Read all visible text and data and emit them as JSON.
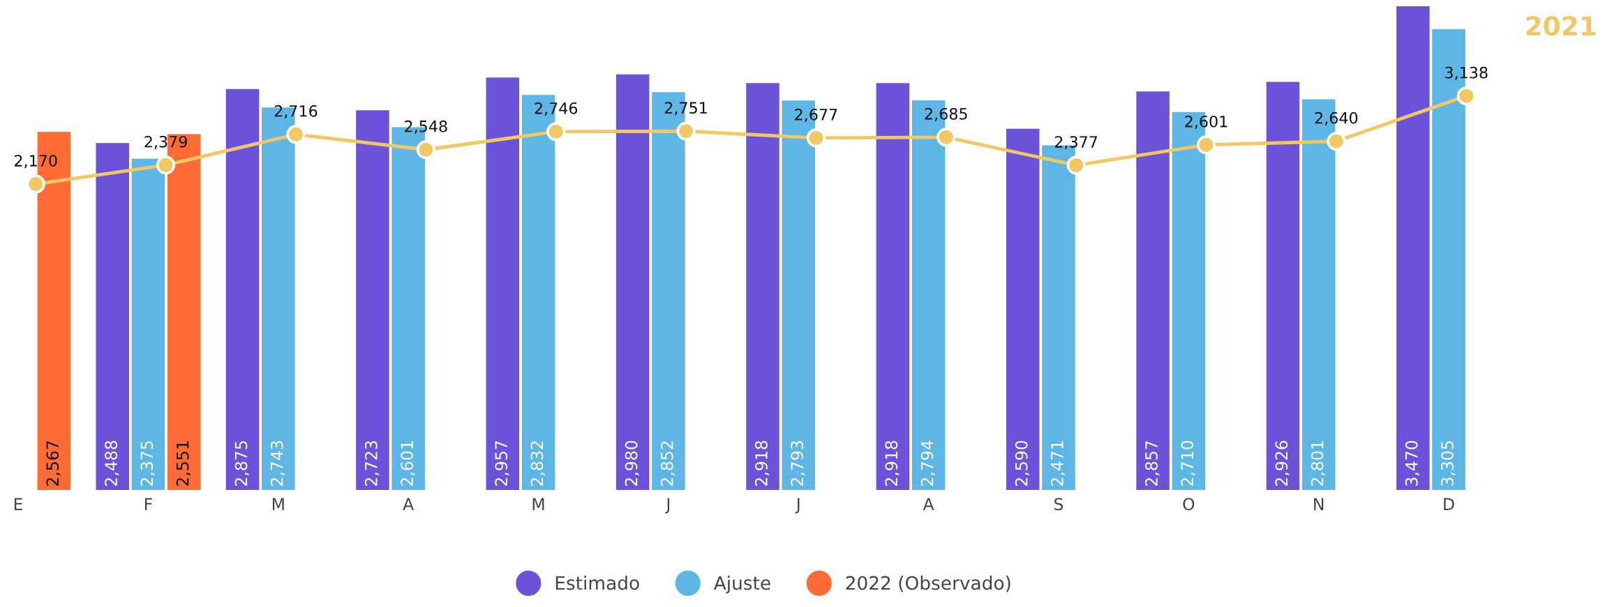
{
  "chart_data": {
    "type": "bar",
    "categories": [
      "E",
      "F",
      "M",
      "A",
      "M",
      "J",
      "J",
      "A",
      "S",
      "O",
      "N",
      "D"
    ],
    "series": [
      {
        "name": "Estimado",
        "color": "#6c52d9",
        "values": [
          null,
          2488,
          2875,
          2723,
          2957,
          2980,
          2918,
          2918,
          2590,
          2857,
          2926,
          3470
        ],
        "value_labels": [
          null,
          "2,488",
          "2,875",
          "2,723",
          "2,957",
          "2,980",
          "2,918",
          "2,918",
          "2,590",
          "2,857",
          "2,926",
          "3,470"
        ]
      },
      {
        "name": "Ajuste",
        "color": "#5db6e4",
        "values": [
          null,
          2375,
          2743,
          2601,
          2832,
          2852,
          2793,
          2794,
          2471,
          2710,
          2801,
          3305
        ],
        "value_labels": [
          null,
          "2,375",
          "2,743",
          "2,601",
          "2,832",
          "2,852",
          "2,793",
          "2,794",
          "2,471",
          "2,710",
          "2,801",
          "3,305"
        ]
      },
      {
        "name": "2022 (Observado)",
        "color": "#ff6b35",
        "values": [
          2567,
          2551,
          null,
          null,
          null,
          null,
          null,
          null,
          null,
          null,
          null,
          null
        ],
        "value_labels": [
          "2,567",
          "2,551",
          null,
          null,
          null,
          null,
          null,
          null,
          null,
          null,
          null,
          null
        ]
      },
      {
        "name": "2021",
        "type": "line",
        "axis": "y2",
        "color": "#f2c864",
        "marker": "circle",
        "values": [
          2170,
          2379,
          2716,
          2548,
          2746,
          2751,
          2677,
          2685,
          2377,
          2601,
          2640,
          3138
        ],
        "value_labels": [
          "2,170",
          "2,379",
          "2,716",
          "2,548",
          "2,746",
          "2,751",
          "2,677",
          "2,685",
          "2,377",
          "2,601",
          "2,640",
          "3,138"
        ]
      }
    ],
    "tick_labels": "x",
    "grid": false,
    "legend": "bottom"
  }
}
